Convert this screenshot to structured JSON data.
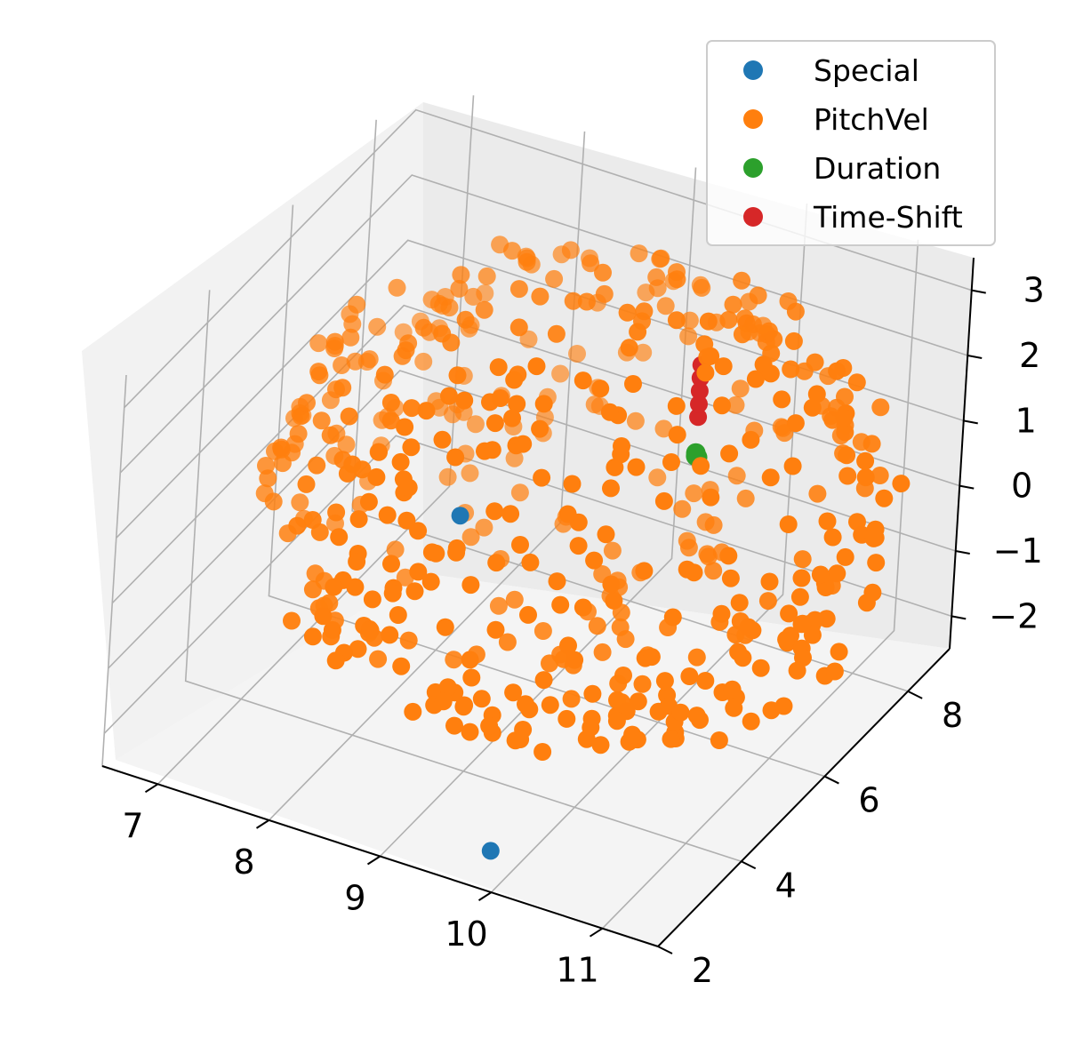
{
  "chart_data": {
    "type": "scatter",
    "title": "",
    "xlabel": "",
    "ylabel": "",
    "zlabel": "",
    "xlim": [
      6.5,
      11.5
    ],
    "ylim": [
      2,
      9
    ],
    "zlim": [
      -2.5,
      3.5
    ],
    "x_ticks": [
      "7",
      "8",
      "9",
      "10",
      "11"
    ],
    "y_ticks": [
      "2",
      "4",
      "6",
      "8"
    ],
    "z_ticks": [
      "−2",
      "−1",
      "0",
      "1",
      "2",
      "3"
    ],
    "grid": true,
    "legend_position": "top-right",
    "series": [
      {
        "name": "Special",
        "color": "#1f77b4",
        "points": [
          [
            9.8,
            2.5,
            -2.3
          ],
          [
            7.8,
            7.0,
            -1.2
          ]
        ]
      },
      {
        "name": "PitchVel",
        "color": "#ff7f0e",
        "description_only": false,
        "points": []
      },
      {
        "name": "Duration",
        "color": "#2ca02c",
        "points": [
          [
            9.5,
            8.0,
            0.0
          ],
          [
            9.5,
            8.0,
            0.05
          ],
          [
            9.5,
            8.05,
            -0.05
          ]
        ]
      },
      {
        "name": "Time-Shift",
        "color": "#d62728",
        "points": [
          [
            9.5,
            8.0,
            0.6
          ],
          [
            9.5,
            8.0,
            0.8
          ],
          [
            9.5,
            8.0,
            1.0
          ],
          [
            9.5,
            8.0,
            1.2
          ],
          [
            9.5,
            8.0,
            1.4
          ]
        ]
      }
    ]
  },
  "legend": {
    "items": [
      "Special",
      "PitchVel",
      "Duration",
      "Time-Shift"
    ]
  }
}
